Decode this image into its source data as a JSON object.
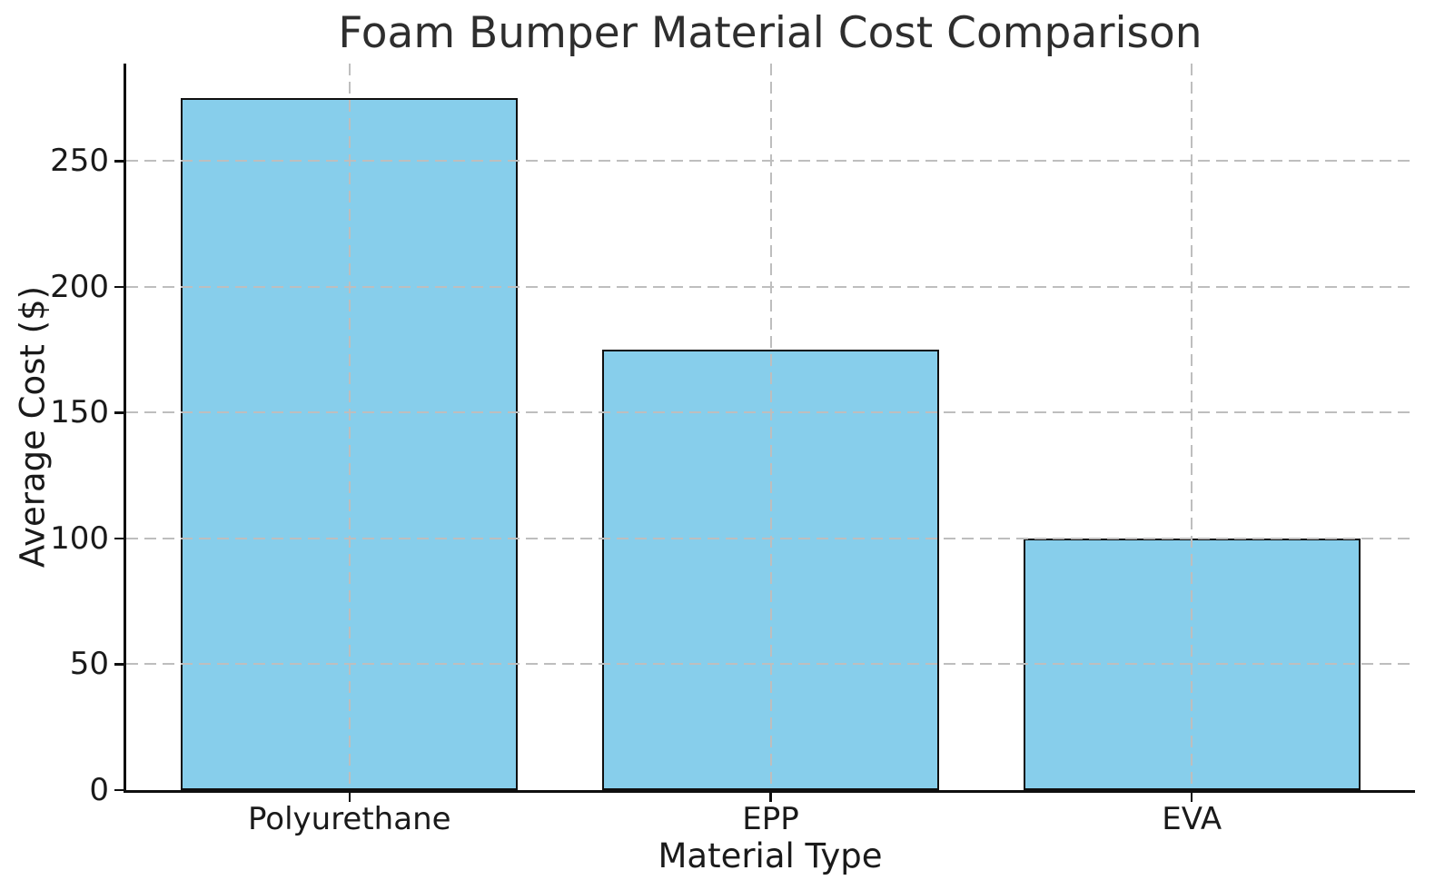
{
  "chart_data": {
    "type": "bar",
    "title": "Foam Bumper Material Cost Comparison",
    "xlabel": "Material Type",
    "ylabel": "Average Cost ($)",
    "categories": [
      "Polyurethane",
      "EPP",
      "EVA"
    ],
    "values": [
      275,
      175,
      100
    ],
    "yticks": [
      0,
      50,
      100,
      150,
      200,
      250
    ],
    "ylim": [
      0,
      288.75
    ],
    "grid": true,
    "grid_style": "dashed",
    "grid_color": "#bebebe",
    "legend": null,
    "bar_color": "#87CEEB",
    "bar_edge_color": "#000000",
    "background_color": "#ffffff"
  }
}
